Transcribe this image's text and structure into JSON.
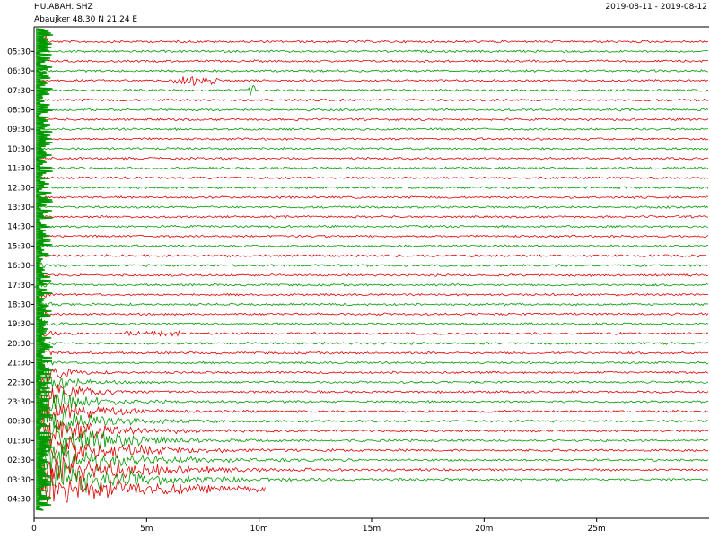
{
  "header": {
    "station": "HU.ABAH..SHZ",
    "location": "Abaujker  48.30 N 21.24 E",
    "date_range": "2019-08-11 - 2019-08-12"
  },
  "chart_data": {
    "type": "helicorder",
    "title": "HU.ABAH..SHZ",
    "subtitle": "Abaujker  48.30 N 21.24 E",
    "xlabel": "",
    "ylabel": "",
    "x_range_minutes": [
      0,
      30
    ],
    "x_tick_values": [
      0,
      5,
      10,
      15,
      20,
      25
    ],
    "x_tick_labels": [
      "0",
      "5m",
      "10m",
      "15m",
      "20m",
      "25m"
    ],
    "row_minutes": 30,
    "row_count": 47,
    "row_start_labels": [
      "05:30",
      "06:30",
      "07:30",
      "08:30",
      "09:30",
      "10:30",
      "11:30",
      "12:30",
      "13:30",
      "14:30",
      "15:30",
      "16:30",
      "17:30",
      "18:30",
      "19:30",
      "20:30",
      "21:30",
      "22:30",
      "23:30",
      "00:30",
      "01:30",
      "02:30",
      "03:30",
      "04:30"
    ],
    "colors": [
      "#dd0000",
      "#009900"
    ],
    "last_row_end_minute": 10.3,
    "grid": false,
    "events": [
      {
        "row": 4,
        "start_min": 6.2,
        "end_min": 8.2,
        "amplitude": 0.55,
        "note": "small local burst"
      },
      {
        "row": 5,
        "start_min": 9.5,
        "end_min": 9.8,
        "amplitude": 0.9,
        "note": "spike"
      },
      {
        "row": 30,
        "start_min": 4.0,
        "end_min": 6.5,
        "amplitude": 0.3,
        "note": "noise burst"
      },
      {
        "row": 0,
        "start_min": 0.0,
        "end_min": 0.6,
        "amplitude": 1.0,
        "note": "large teleseismic arrival coda (across rows)"
      }
    ]
  }
}
